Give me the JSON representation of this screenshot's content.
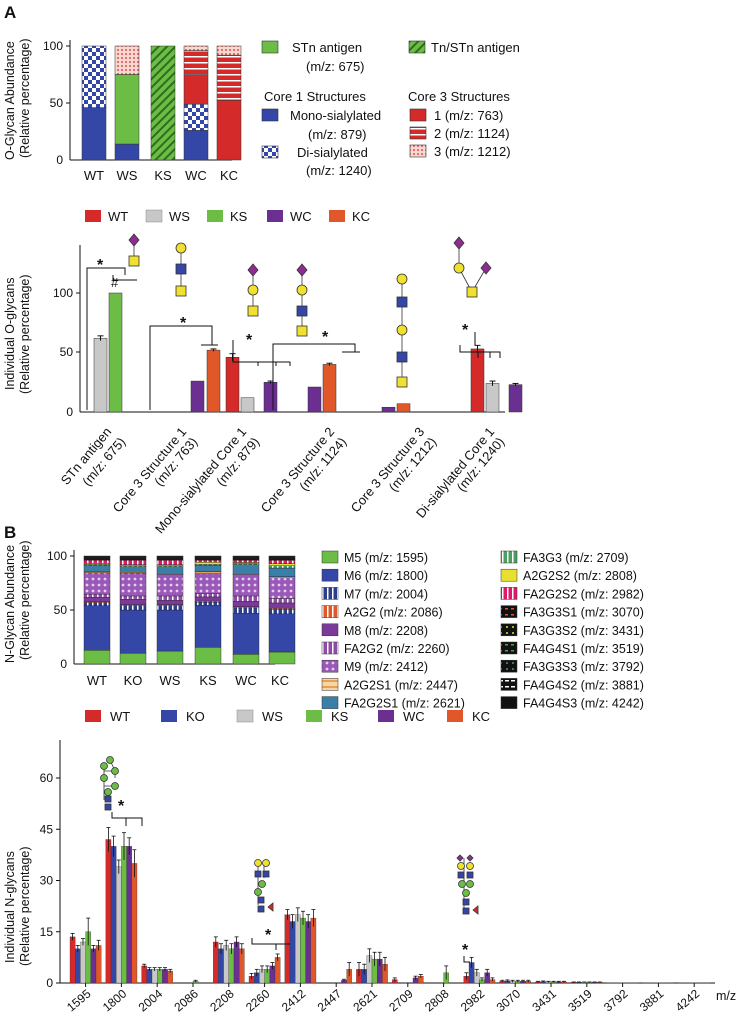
{
  "panels": {
    "A": "A",
    "B": "B"
  },
  "colors": {
    "WT": "#d42a2a",
    "KO": "#3447a6",
    "WS": "#c8c8c8",
    "KS": "#6cbd45",
    "WC": "#6b2f91",
    "KC": "#e0582a",
    "mono": "#3447a6",
    "di": "#3447a6",
    "stn": "#6cbd45",
    "tn": "#6cbd45",
    "c3": "#d42a2a",
    "m5": "#6cbd45",
    "m6": "#3447a6",
    "m7": "#2c3e8a",
    "a2g2": "#e0582a",
    "m8": "#7b3a9a",
    "fa2g2": "#8e4ba8",
    "m9": "#9a58b8",
    "a2g2s1": "#e8a050",
    "fa2g2s1": "#3a7fa8",
    "fa3g3": "#4aa060",
    "a2g2s2": "#e8e030",
    "fa2g2s2": "#e0186a",
    "black": "#111111"
  },
  "chart_data": [
    {
      "id": "A-top",
      "type": "bar",
      "stacked": true,
      "ylabel": "O-Glycan Abundance",
      "ylabel2": "(Relative percentage)",
      "categories": [
        "WT",
        "WS",
        "KS",
        "WC",
        "KC"
      ],
      "yticks": [
        0,
        50,
        100
      ],
      "ylim": [
        0,
        100
      ],
      "series": [
        {
          "name": "Mono-sialylated",
          "mz": "(m/z: 879)",
          "values": [
            46,
            14,
            0,
            26,
            0
          ]
        },
        {
          "name": "Di-sialylated",
          "mz": "(m/z: 1240)",
          "values": [
            54,
            0,
            0,
            23,
            0
          ]
        },
        {
          "name": "STn antigen",
          "mz": "(m/z: 675)",
          "values": [
            0,
            61,
            0,
            0,
            0
          ]
        },
        {
          "name": "Tn/STn antigen",
          "values": [
            0,
            0,
            100,
            0,
            0
          ]
        },
        {
          "name": "1",
          "mz": "(m/z: 763)",
          "values": [
            0,
            0,
            0,
            26,
            52
          ]
        },
        {
          "name": "2",
          "mz": "(m/z: 1124)",
          "values": [
            0,
            0,
            0,
            21,
            40
          ]
        },
        {
          "name": "3",
          "mz": "(m/z: 1212)",
          "values": [
            0,
            25,
            0,
            4,
            8
          ]
        }
      ],
      "legend": {
        "stn_label": "STn antigen",
        "stn_mz": "(m/z: 675)",
        "tn_label": "Tn/STn antigen",
        "core1_title": "Core 1 Structures",
        "mono_label": "Mono-sialylated",
        "mono_mz": "(m/z: 879)",
        "di_label": "Di-sialylated",
        "di_mz": "(m/z: 1240)",
        "core3_title": "Core 3 Structures",
        "c3_1": "1 (m/z: 763)",
        "c3_2": "2 (m/z: 1124)",
        "c3_3": "3 (m/z: 1212)"
      }
    },
    {
      "id": "A-bottom",
      "type": "bar",
      "ylabel": "Individual O-glycans",
      "ylabel2": "(Relative percentage)",
      "yticks": [
        0,
        50,
        100
      ],
      "ylim": [
        0,
        125
      ],
      "legend": [
        "WT",
        "WS",
        "KS",
        "WC",
        "KC"
      ],
      "groups": [
        {
          "label": "STn antigen",
          "mz": "(m/z: 675)",
          "bars": [
            {
              "s": "WS",
              "v": 62,
              "e": 2
            },
            {
              "s": "KS",
              "v": 100,
              "e": 0
            }
          ]
        },
        {
          "label": "Core 3 Structure 1",
          "mz": "(m/z: 763)",
          "bars": [
            {
              "s": "WC",
              "v": 26,
              "e": 0
            },
            {
              "s": "KC",
              "v": 52,
              "e": 1
            }
          ]
        },
        {
          "label": "Mono-sialylated Core 1",
          "mz": "(m/z: 879)",
          "bars": [
            {
              "s": "WT",
              "v": 46,
              "e": 3
            },
            {
              "s": "WS",
              "v": 12,
              "e": 0
            },
            {
              "s": "WC",
              "v": 25,
              "e": 1
            }
          ]
        },
        {
          "label": "Core 3 Structure 2",
          "mz": "(m/z: 1124)",
          "bars": [
            {
              "s": "WC",
              "v": 21,
              "e": 0
            },
            {
              "s": "KC",
              "v": 40,
              "e": 1
            }
          ]
        },
        {
          "label": "Core 3 Structure 3",
          "mz": "(m/z: 1212)",
          "bars": [
            {
              "s": "WC",
              "v": 4,
              "e": 0
            },
            {
              "s": "KC",
              "v": 7,
              "e": 0
            }
          ]
        },
        {
          "label": "Di-sialylated Core 1",
          "mz": "(m/z: 1240)",
          "bars": [
            {
              "s": "WT",
              "v": 53,
              "e": 3
            },
            {
              "s": "WS",
              "v": 24,
              "e": 2
            },
            {
              "s": "WC",
              "v": 23,
              "e": 1
            }
          ]
        }
      ],
      "annotations": [
        "*",
        "#",
        "*",
        "*",
        "*",
        "*"
      ]
    },
    {
      "id": "B-top",
      "type": "bar",
      "stacked": true,
      "ylabel": "N-Glycan Abundance",
      "ylabel2": "(Relative percentage)",
      "categories": [
        "WT",
        "KO",
        "WS",
        "KS",
        "WC",
        "KC"
      ],
      "yticks": [
        0,
        50,
        100
      ],
      "ylim": [
        0,
        100
      ],
      "series_order": [
        "M5",
        "M6",
        "M7",
        "A2G2",
        "M8",
        "FA2G2",
        "M9",
        "A2G2S1",
        "FA2G2S1",
        "FA3G3",
        "A2G2S2",
        "FA2G2S2",
        "FA3G3S1",
        "FA3G3S2",
        "FA4G4S1",
        "FA3G3S3",
        "FA4G4S2",
        "FA4G4S3"
      ],
      "stacks": [
        [
          13,
          42,
          3,
          1,
          4,
          3,
          20,
          1,
          6,
          1,
          1,
          3,
          1,
          1,
          0.5,
          0.5,
          0.5,
          0.5
        ],
        [
          10,
          40,
          4,
          1,
          5,
          3,
          21,
          1,
          5,
          1,
          1,
          4,
          1,
          1,
          0.5,
          0.5,
          0.5,
          0.5
        ],
        [
          12,
          38,
          4,
          1,
          4,
          4,
          20,
          1,
          6,
          1,
          1,
          4,
          1,
          1,
          0.5,
          0.5,
          0.5,
          0.5
        ],
        [
          16,
          40,
          3,
          1,
          4,
          3,
          19,
          2,
          6,
          1,
          2,
          2,
          1,
          1,
          0.5,
          0.5,
          0.5,
          0.5
        ],
        [
          9,
          38,
          5,
          1,
          5,
          5,
          20,
          1,
          8,
          1,
          1,
          2,
          1,
          1,
          0.5,
          0.5,
          0.5,
          0.5
        ],
        [
          11,
          35,
          4,
          1,
          5,
          4,
          19,
          1,
          8,
          2,
          2,
          3,
          1,
          1,
          0.5,
          0.5,
          0.5,
          0.5
        ]
      ],
      "legend": [
        {
          "code": "m5",
          "label": "M5 (m/z: 1595)"
        },
        {
          "code": "m6",
          "label": "M6 (m/z: 1800)"
        },
        {
          "code": "m7",
          "label": "M7 (m/z: 2004)"
        },
        {
          "code": "a2g2",
          "label": "A2G2 (m/z: 2086)"
        },
        {
          "code": "m8",
          "label": "M8 (m/z: 2208)"
        },
        {
          "code": "fa2g2",
          "label": "FA2G2 (m/z: 2260)"
        },
        {
          "code": "m9",
          "label": "M9 (m/z: 2412)"
        },
        {
          "code": "a2g2s1",
          "label": "A2G2S1 (m/z: 2447)"
        },
        {
          "code": "fa2g2s1",
          "label": "FA2G2S1 (m/z: 2621)"
        },
        {
          "code": "fa3g3",
          "label": "FA3G3 (m/z: 2709)"
        },
        {
          "code": "a2g2s2",
          "label": "A2G2S2 (m/z: 2808)"
        },
        {
          "code": "fa2g2s2",
          "label": "FA2G2S2 (m/z: 2982)"
        },
        {
          "code": "fa3g3s1",
          "label": "FA3G3S1 (m/z: 3070)"
        },
        {
          "code": "fa3g3s2",
          "label": "FA3G3S2 (m/z: 3431)"
        },
        {
          "code": "fa4g4s1",
          "label": "FA4G4S1 (m/z: 3519)"
        },
        {
          "code": "fa3g3s3",
          "label": "FA3G3S3 (m/z: 3792)"
        },
        {
          "code": "fa4g4s2",
          "label": "FA4G4S2 (m/z: 3881)"
        },
        {
          "code": "fa4g4s3",
          "label": "FA4G4S3 (m/z: 4242)"
        }
      ]
    },
    {
      "id": "B-bottom",
      "type": "bar",
      "ylabel": "Individual N-glycans",
      "ylabel2": "(Relative percentage)",
      "xlabel": "m/z",
      "yticks": [
        0,
        15,
        30,
        45,
        60
      ],
      "ylim": [
        0,
        60
      ],
      "legend": [
        "WT",
        "KO",
        "WS",
        "KS",
        "WC",
        "KC"
      ],
      "categories": [
        "1595",
        "1800",
        "2004",
        "2086",
        "2208",
        "2260",
        "2412",
        "2447",
        "2621",
        "2709",
        "2808",
        "2982",
        "3070",
        "3431",
        "3519",
        "3792",
        "3881",
        "4242"
      ],
      "series": [
        {
          "name": "WT",
          "values": [
            13.5,
            42,
            5,
            0,
            12,
            2,
            20,
            0,
            4,
            1,
            0,
            2,
            0.5,
            0.3,
            0.2,
            0.1,
            0.1,
            0.1
          ],
          "errors": [
            1,
            3.5,
            0.5,
            0,
            1.5,
            0.8,
            1.5,
            0,
            2,
            0.5,
            0,
            1,
            0.3,
            0.2,
            0.1,
            0,
            0,
            0
          ]
        },
        {
          "name": "KO",
          "values": [
            10,
            40,
            4,
            0,
            10,
            3,
            18,
            0,
            4,
            0,
            0,
            6,
            0.6,
            0.4,
            0.2,
            0.1,
            0.1,
            0.1
          ],
          "errors": [
            1,
            3,
            0.5,
            0,
            1.5,
            1,
            2,
            0,
            1.5,
            0,
            0,
            1.5,
            0.3,
            0.2,
            0.1,
            0,
            0,
            0
          ]
        },
        {
          "name": "WS",
          "values": [
            12,
            34,
            4,
            0,
            11,
            4,
            20,
            0,
            8,
            0,
            0,
            3,
            0.5,
            0.3,
            0.2,
            0.1,
            0.1,
            0.1
          ],
          "errors": [
            1,
            2,
            0.5,
            0,
            1.5,
            1,
            2,
            0,
            2,
            0,
            0,
            1,
            0.3,
            0.2,
            0.1,
            0,
            0,
            0
          ]
        },
        {
          "name": "KS",
          "values": [
            15,
            40,
            4,
            0.5,
            10,
            4,
            19,
            0,
            7,
            0,
            3,
            1,
            0.5,
            0.3,
            0.2,
            0.1,
            0.1,
            0.1
          ],
          "errors": [
            4,
            4,
            0.5,
            0.3,
            1.5,
            1,
            2,
            0,
            2,
            0,
            2,
            0.5,
            0.3,
            0.2,
            0.1,
            0,
            0,
            0
          ]
        },
        {
          "name": "WC",
          "values": [
            10,
            40,
            4,
            0,
            12,
            5,
            18,
            0.8,
            7,
            1.5,
            0,
            3,
            0.5,
            0.3,
            0.2,
            0.1,
            0.1,
            0.1
          ],
          "errors": [
            1,
            2.5,
            0.5,
            0,
            1.5,
            1,
            2,
            0.3,
            2,
            0.5,
            0,
            1,
            0.3,
            0.2,
            0.1,
            0,
            0,
            0
          ]
        },
        {
          "name": "KC",
          "values": [
            11,
            35,
            3.5,
            0,
            10,
            7.5,
            19,
            4,
            5.5,
            2,
            0,
            1,
            0.5,
            0.3,
            0.2,
            0.1,
            0.1,
            0.1
          ],
          "errors": [
            1.5,
            4,
            0.5,
            0,
            1.5,
            1,
            2.5,
            2,
            2,
            0.5,
            0,
            0.5,
            0.3,
            0.2,
            0.1,
            0,
            0,
            0
          ]
        }
      ],
      "annotations": [
        "*",
        "*",
        "*"
      ]
    }
  ]
}
